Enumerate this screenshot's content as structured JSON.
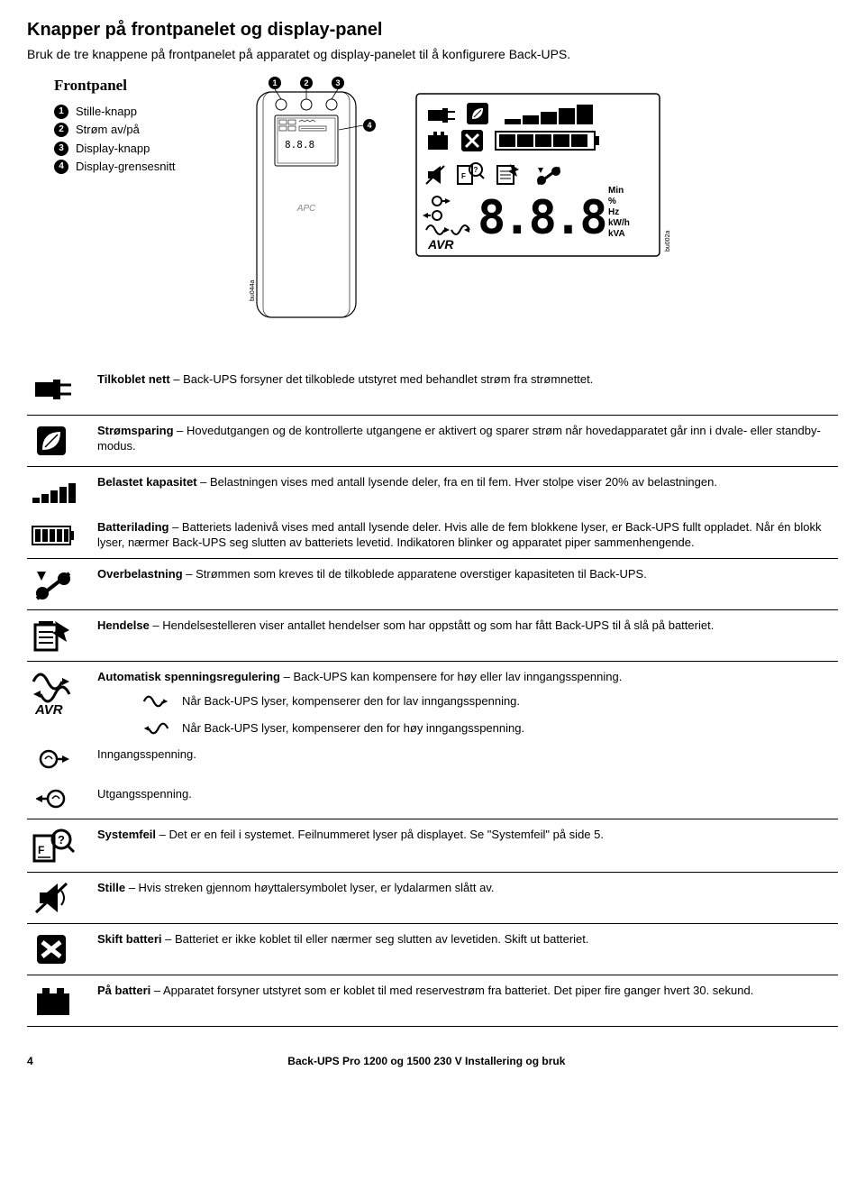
{
  "heading": "Knapper på frontpanelet og display-panel",
  "intro": "Bruk de tre knappene på frontpanelet på apparatet og display-panelet til å konfigurere Back-UPS.",
  "frontpanel": {
    "title": "Frontpanel",
    "items": [
      {
        "n": "1",
        "label": "Stille-knapp"
      },
      {
        "n": "2",
        "label": "Strøm av/på"
      },
      {
        "n": "3",
        "label": "Display-knapp"
      },
      {
        "n": "4",
        "label": "Display-grensesnitt"
      }
    ],
    "device_ref": "bu044a",
    "display_ref": "bu002a",
    "display_units": [
      "Min",
      "%",
      "Hz",
      "kW/h",
      "kVA"
    ],
    "avr_label": "AVR"
  },
  "rows": [
    {
      "icon": "plug",
      "bold": "Tilkoblet nett",
      "text": " – Back-UPS forsyner det tilkoblede utstyret med behandlet strøm fra strømnettet."
    },
    {
      "icon": "leaf",
      "bold": "Strømsparing",
      "text": " – Hovedutgangen og de kontrollerte utgangene er aktivert og sparer strøm når hovedapparatet går inn i dvale- eller standby-modus."
    },
    {
      "icon": "load-bars",
      "bold": "Belastet kapasitet",
      "text": " – Belastningen vises med antall lysende deler, fra en til fem. Hver stolpe viser 20% av belastningen.",
      "noborder": true
    },
    {
      "icon": "battery-bars",
      "bold": "Batterilading",
      "text": " – Batteriets ladenivå vises med antall lysende deler. Hvis alle de fem blokkene lyser, er Back-UPS fullt oppladet. Når én blokk lyser, nærmer Back-UPS seg slutten av batteriets levetid. Indikatoren blinker og apparatet piper sammenhengende."
    },
    {
      "icon": "overload",
      "bold": "Overbelastning",
      "text": " – Strømmen som kreves til de tilkoblede apparatene overstiger kapasiteten til Back-UPS."
    },
    {
      "icon": "event",
      "bold": "Hendelse",
      "text": " – Hendelsestelleren viser antallet hendelser som har oppstått og som har fått Back-UPS til å slå på batteriet."
    },
    {
      "icon": "avr",
      "bold": "Automatisk spenningsregulering",
      "text": " – Back-UPS kan kompensere for høy eller lav inngangsspenning.",
      "sub": [
        {
          "icon": "sine-up",
          "text": "Når Back-UPS lyser, kompenserer den for lav inngangsspenning."
        },
        {
          "icon": "sine-down",
          "text": "Når Back-UPS lyser, kompenserer den for høy inngangsspenning."
        }
      ],
      "noborder": true
    },
    {
      "icon": "in",
      "text": "Inngangsspenning.",
      "noborder": true,
      "tight": true
    },
    {
      "icon": "out",
      "text": "Utgangsspenning."
    },
    {
      "icon": "sysfault",
      "bold": "Systemfeil",
      "text": " – Det er en feil i systemet. Feilnummeret lyser på displayet. Se \"Systemfeil\" på side 5."
    },
    {
      "icon": "mute",
      "bold": "Stille",
      "text": " – Hvis streken gjennom høyttalersymbolet lyser, er lydalarmen slått av."
    },
    {
      "icon": "replace-batt",
      "bold": "Skift batteri",
      "text": " – Batteriet er ikke koblet til eller nærmer seg slutten av levetiden. Skift ut batteriet."
    },
    {
      "icon": "on-batt",
      "bold": "På batteri",
      "text": " – Apparatet forsyner utstyret som er koblet til med reservestrøm fra batteriet. Det piper fire ganger hvert 30. sekund."
    }
  ],
  "footer": {
    "page": "4",
    "title": "Back-UPS Pro 1200 og 1500 230 V Installering og bruk"
  }
}
